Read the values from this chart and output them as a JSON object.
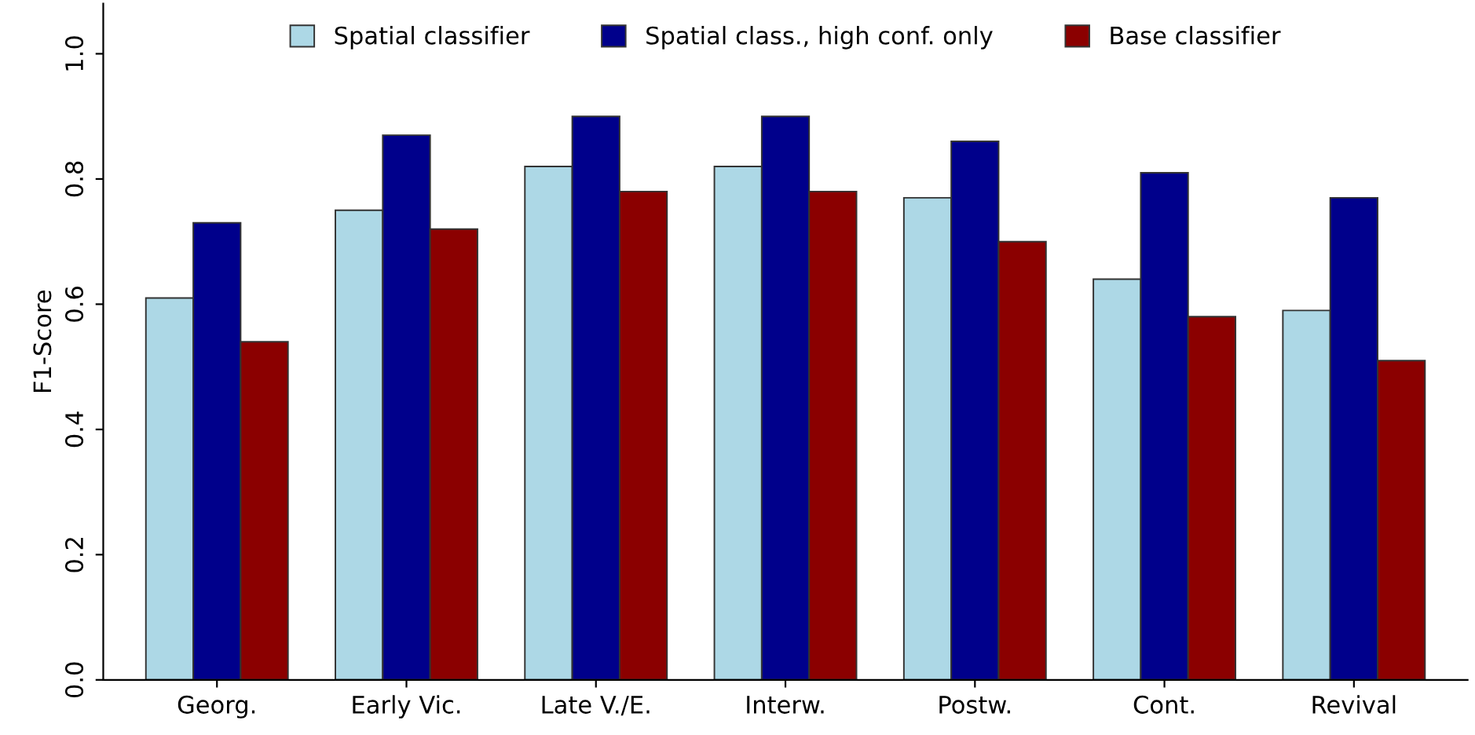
{
  "chart_data": {
    "type": "bar",
    "ylabel": "F1-Score",
    "categories": [
      "Georg.",
      "Early Vic.",
      "Late V./E.",
      "Interw.",
      "Postw.",
      "Cont.",
      "Revival"
    ],
    "series": [
      {
        "name": "Spatial classifier",
        "color": "#add8e6",
        "values": [
          0.61,
          0.75,
          0.82,
          0.82,
          0.77,
          0.64,
          0.59
        ]
      },
      {
        "name": "Spatial class., high conf. only",
        "color": "#00008b",
        "values": [
          0.73,
          0.87,
          0.9,
          0.9,
          0.86,
          0.81,
          0.77
        ]
      },
      {
        "name": "Base classifier",
        "color": "#8b0000",
        "values": [
          0.54,
          0.72,
          0.78,
          0.78,
          0.7,
          0.58,
          0.51
        ]
      }
    ],
    "ylim": [
      0,
      1.08
    ],
    "yticks": [
      {
        "value": 0,
        "label": "0.0"
      },
      0.2,
      0.4,
      0.6,
      0.8,
      {
        "value": 1,
        "label": "1.0"
      }
    ],
    "grid": false,
    "legend": "top"
  }
}
